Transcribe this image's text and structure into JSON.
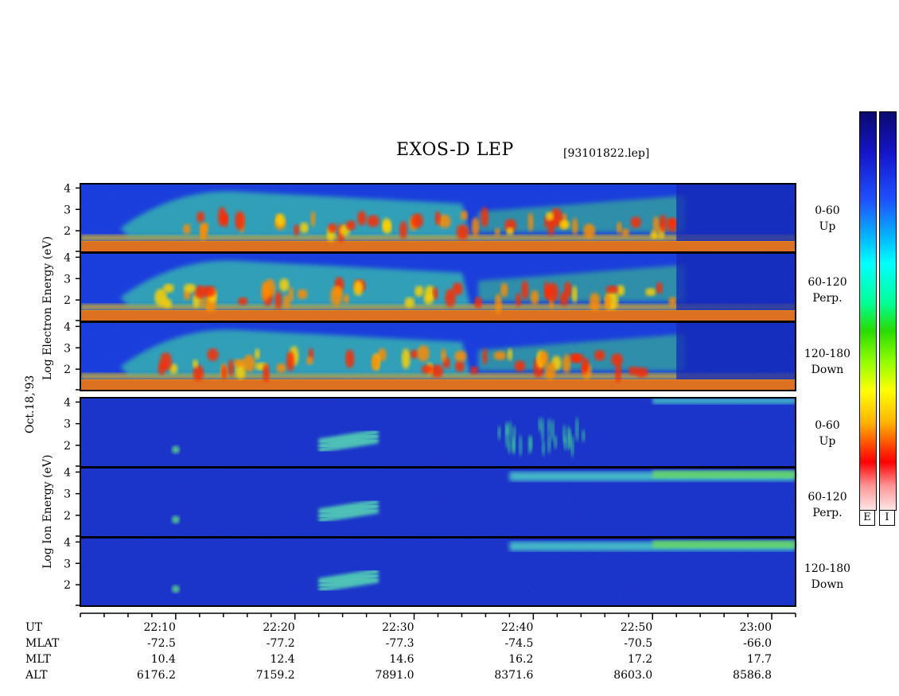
{
  "header": {
    "title": "EXOS-D LEP",
    "file": "[93101822.lep]"
  },
  "electron_section": {
    "ylabel": "Log Electron Energy (eV)",
    "panels": [
      {
        "label_line1": "0-60",
        "label_line2": "Up"
      },
      {
        "label_line1": "60-120",
        "label_line2": "Perp."
      },
      {
        "label_line1": "120-180",
        "label_line2": "Down"
      }
    ]
  },
  "ion_section": {
    "ylabel": "Log Ion Energy (eV)",
    "panels": [
      {
        "label_line1": "0-60",
        "label_line2": "Up"
      },
      {
        "label_line1": "60-120",
        "label_line2": "Perp."
      },
      {
        "label_line1": "120-180",
        "label_line2": "Down"
      }
    ]
  },
  "date_label": "Oct.18,'93",
  "colorbar": {
    "labels": [
      "E",
      "I"
    ]
  },
  "chart_data": {
    "type": "heatmap",
    "title": "EXOS-D LEP",
    "y_ticks": [
      "4",
      "3",
      "2"
    ],
    "ylim": [
      1,
      4.2
    ],
    "xlim": [
      "22:02",
      "23:02"
    ],
    "ephemeris": {
      "rows": [
        {
          "name": "UT",
          "values": [
            "22:10",
            "22:20",
            "22:30",
            "22:40",
            "22:50",
            "23:00"
          ]
        },
        {
          "name": "MLAT",
          "values": [
            "-72.5",
            "-77.2",
            "-77.3",
            "-74.5",
            "-70.5",
            "-66.0"
          ]
        },
        {
          "name": "MLT",
          "values": [
            "10.4",
            "12.4",
            "14.6",
            "16.2",
            "17.2",
            "17.7"
          ]
        },
        {
          "name": "ALT",
          "values": [
            "6176.2",
            "7159.2",
            "7891.0",
            "8371.6",
            "8603.0",
            "8586.8"
          ]
        }
      ]
    }
  }
}
